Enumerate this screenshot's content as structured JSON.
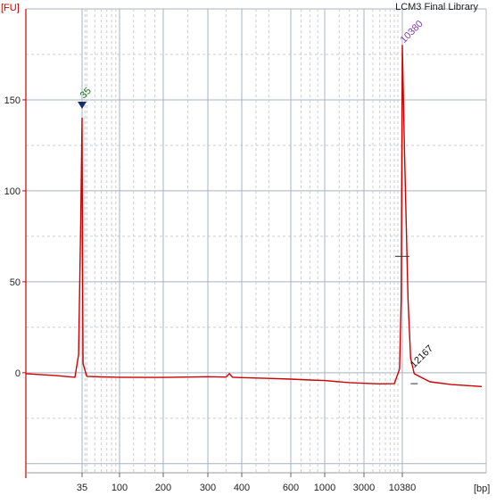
{
  "chart_data": {
    "type": "line",
    "title": "LCM3 Final Library",
    "ylabel": "[FU]",
    "xlabel": "[bp]",
    "ylim": [
      -55,
      200
    ],
    "y_ticks": [
      0,
      50,
      100,
      150
    ],
    "y_tick_labels": [
      "0",
      "50",
      "100",
      "150"
    ],
    "x_ticks": [
      35,
      100,
      200,
      300,
      400,
      600,
      1000,
      3000,
      10380
    ],
    "x_tick_labels": [
      "35",
      "100",
      "200",
      "300",
      "400",
      "600",
      "1000",
      "3000",
      "10380"
    ],
    "grid": true,
    "legend": "none",
    "series": [
      {
        "values_description_free": true,
        "x": [
          22,
          28,
          33,
          34,
          34.6,
          35,
          35.4,
          36,
          40,
          60,
          100,
          150,
          200,
          250,
          300,
          350,
          360,
          370,
          400,
          500,
          600,
          800,
          1000,
          1500,
          2000,
          3000,
          5000,
          8000,
          9500,
          10000,
          10380,
          10700,
          11200,
          11600,
          12167,
          13000,
          15000,
          20000,
          30000
        ],
        "values": [
          -0.5,
          -1.5,
          -2.5,
          10,
          80,
          140,
          60,
          5,
          -2,
          -2.3,
          -2.5,
          -2.6,
          -2.6,
          -2.4,
          -2.2,
          -2.4,
          -0.5,
          -2.5,
          -2.7,
          -3.1,
          -3.5,
          -4.0,
          -4.3,
          -5.0,
          -5.4,
          -5.8,
          -6.1,
          -6.0,
          2,
          40,
          180,
          120,
          40,
          8,
          -0.5,
          -2,
          -5,
          -6.5,
          -7.6
        ]
      }
    ],
    "annotations": [
      {
        "text": "35",
        "x": 35,
        "y": 150
      },
      {
        "text": "10380",
        "x": 10380,
        "y": 180
      },
      {
        "text": "12167",
        "x": 12167,
        "y": 0
      }
    ],
    "colors": {
      "line": "#cc0000",
      "axis": "#cc0000",
      "grid_major": "#a9b2c3",
      "grid_minor": "#c8ccd6",
      "marker_35": "#1a2a6c",
      "label_35": "#1e7a1e",
      "label_10380": "#7b3aa5",
      "label_12167": "#111111",
      "ylabel": "#cc0000"
    }
  }
}
